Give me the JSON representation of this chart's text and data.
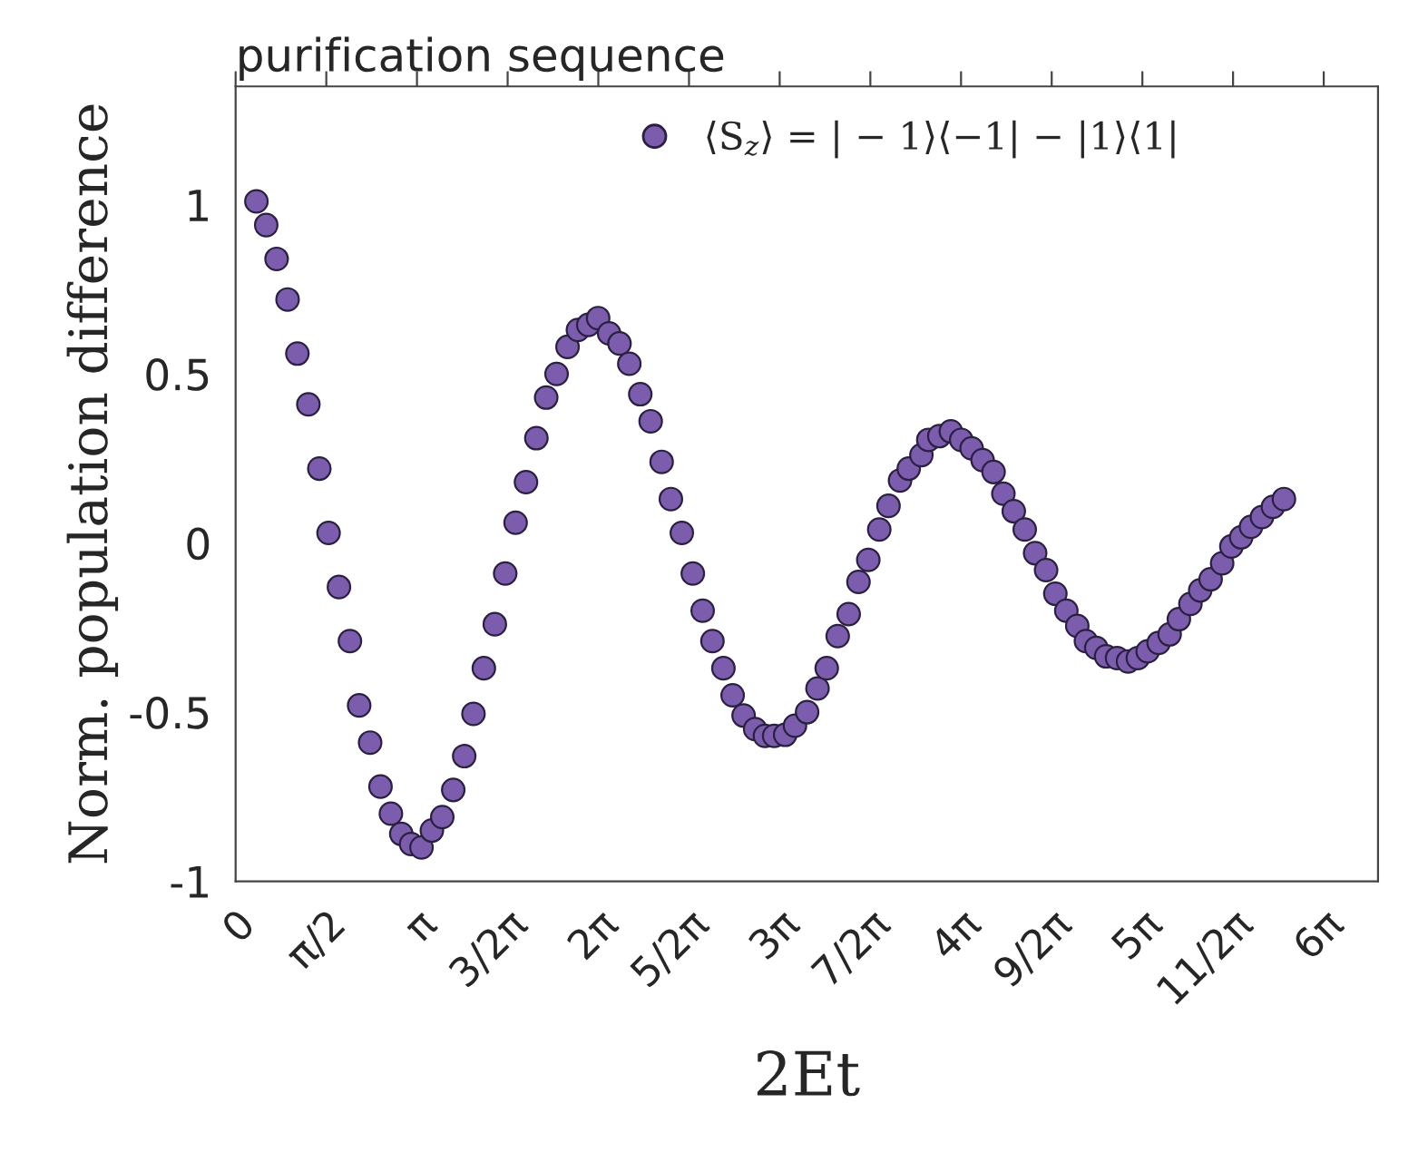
{
  "chart_data": {
    "type": "scatter",
    "title": "purification sequence",
    "xlabel": "2Et",
    "ylabel": "Norm. population difference",
    "xlim": [
      0,
      19.79
    ],
    "ylim": [
      -1,
      1.35
    ],
    "xticks": [
      0,
      {
        "value": 1.5708,
        "label": "π/2"
      },
      {
        "value": 3.1416,
        "label": "π"
      },
      {
        "value": 4.7124,
        "label": "3/2π"
      },
      {
        "value": 6.2832,
        "label": "2π"
      },
      {
        "value": 7.854,
        "label": "5/2π"
      },
      {
        "value": 9.4248,
        "label": "3π"
      },
      {
        "value": 10.9956,
        "label": "7/2π"
      },
      {
        "value": 12.5664,
        "label": "4π"
      },
      {
        "value": 14.1372,
        "label": "9/2π"
      },
      {
        "value": 15.708,
        "label": "5π"
      },
      {
        "value": 17.2788,
        "label": "11/2π"
      },
      {
        "value": 18.8496,
        "label": "6π"
      }
    ],
    "yticks": [
      -1,
      -0.5,
      0,
      0.5,
      1
    ],
    "legend": "top",
    "marker": "circle",
    "series": [
      {
        "name": "⟨S$_{z}$⟩ = | − 1⟩⟨−1| − |1⟩⟨1|",
        "color": "#7b5cad",
        "x": [
          0.36,
          0.53,
          0.71,
          0.9,
          1.07,
          1.26,
          1.45,
          1.61,
          1.79,
          1.98,
          2.14,
          2.33,
          2.51,
          2.69,
          2.87,
          3.04,
          3.22,
          3.4,
          3.58,
          3.77,
          3.96,
          4.12,
          4.3,
          4.49,
          4.67,
          4.85,
          5.03,
          5.21,
          5.38,
          5.56,
          5.75,
          5.93,
          6.11,
          6.28,
          6.47,
          6.65,
          6.82,
          7.01,
          7.19,
          7.38,
          7.54,
          7.73,
          7.92,
          8.09,
          8.26,
          8.45,
          8.61,
          8.8,
          9.0,
          9.17,
          9.33,
          9.52,
          9.69,
          9.9,
          10.08,
          10.24,
          10.43,
          10.62,
          10.79,
          10.96,
          11.15,
          11.31,
          11.51,
          11.66,
          11.88,
          12.0,
          12.19,
          12.39,
          12.57,
          12.75,
          12.94,
          13.13,
          13.3,
          13.48,
          13.67,
          13.85,
          14.04,
          14.2,
          14.39,
          14.58,
          14.73,
          14.91,
          15.08,
          15.27,
          15.46,
          15.63,
          15.8,
          15.99,
          16.18,
          16.34,
          16.54,
          16.71,
          16.89,
          17.09,
          17.25,
          17.42,
          17.59,
          17.78,
          17.97,
          18.16
        ],
        "values": [
          1.01,
          0.94,
          0.84,
          0.72,
          0.56,
          0.41,
          0.22,
          0.03,
          -0.13,
          -0.29,
          -0.48,
          -0.59,
          -0.72,
          -0.8,
          -0.86,
          -0.89,
          -0.9,
          -0.85,
          -0.81,
          -0.73,
          -0.63,
          -0.505,
          -0.37,
          -0.24,
          -0.09,
          0.06,
          0.18,
          0.31,
          0.43,
          0.5,
          0.58,
          0.63,
          0.645,
          0.665,
          0.62,
          0.59,
          0.53,
          0.44,
          0.36,
          0.24,
          0.13,
          0.03,
          -0.09,
          -0.2,
          -0.29,
          -0.37,
          -0.45,
          -0.51,
          -0.55,
          -0.57,
          -0.57,
          -0.567,
          -0.54,
          -0.5,
          -0.43,
          -0.37,
          -0.275,
          -0.21,
          -0.115,
          -0.05,
          0.04,
          0.11,
          0.185,
          0.22,
          0.26,
          0.305,
          0.316,
          0.33,
          0.305,
          0.28,
          0.245,
          0.21,
          0.146,
          0.094,
          0.04,
          -0.03,
          -0.08,
          -0.15,
          -0.2,
          -0.245,
          -0.29,
          -0.31,
          -0.335,
          -0.34,
          -0.35,
          -0.34,
          -0.32,
          -0.295,
          -0.27,
          -0.225,
          -0.18,
          -0.14,
          -0.107,
          -0.06,
          -0.01,
          0.017,
          0.048,
          0.077,
          0.107,
          0.13
        ]
      }
    ]
  }
}
